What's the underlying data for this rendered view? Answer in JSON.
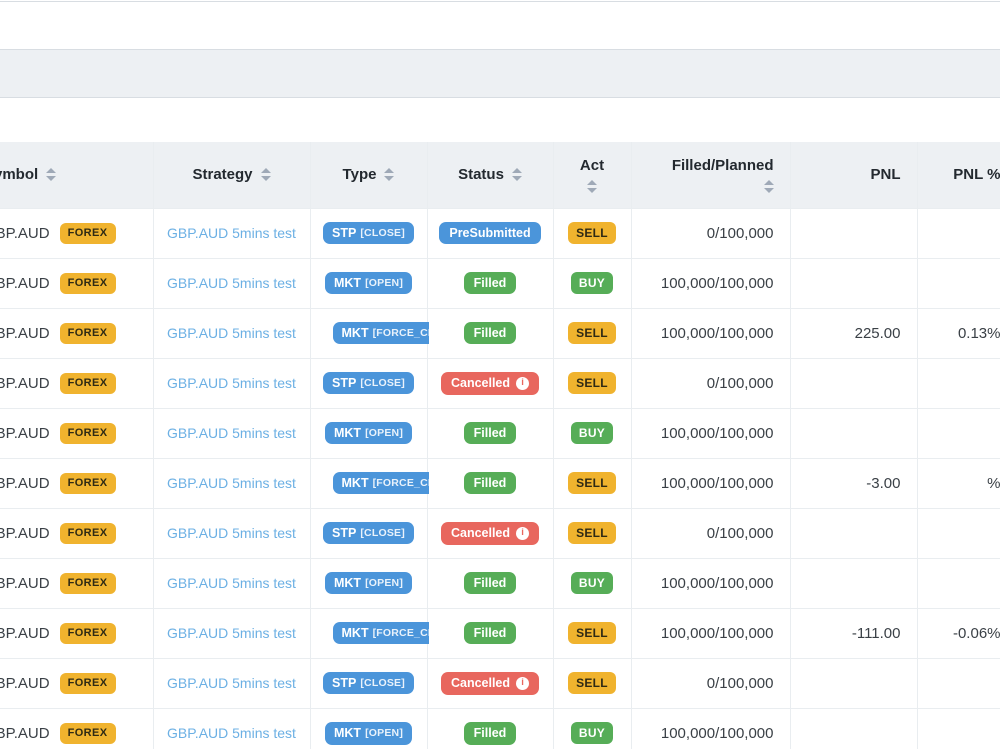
{
  "table": {
    "columns": [
      {
        "id": "symbol",
        "label": "Symbol",
        "sortable": true
      },
      {
        "id": "strategy",
        "label": "Strategy",
        "sortable": true
      },
      {
        "id": "type",
        "label": "Type",
        "sortable": true
      },
      {
        "id": "status",
        "label": "Status",
        "sortable": true
      },
      {
        "id": "act",
        "label": "Act",
        "sortable": true
      },
      {
        "id": "filled_planned",
        "label": "Filled/Planned",
        "sortable": true
      },
      {
        "id": "pnl",
        "label": "PNL",
        "sortable": false
      },
      {
        "id": "pnl_pct",
        "label": "PNL %",
        "sortable": false
      }
    ],
    "rows": [
      {
        "symbol": "GBP.AUD",
        "market_badge": "FOREX",
        "strategy": "GBP.AUD 5mins test",
        "type": {
          "code": "STP",
          "tag": "[CLOSE]",
          "truncated": false
        },
        "status": {
          "label": "PreSubmitted",
          "color": "blue",
          "has_info": false
        },
        "act": "SELL",
        "filled_planned": "0/100,000",
        "pnl": "",
        "pnl_pct": ""
      },
      {
        "symbol": "GBP.AUD",
        "market_badge": "FOREX",
        "strategy": "GBP.AUD 5mins test",
        "type": {
          "code": "MKT",
          "tag": "[OPEN]",
          "truncated": false
        },
        "status": {
          "label": "Filled",
          "color": "green",
          "has_info": false
        },
        "act": "BUY",
        "filled_planned": "100,000/100,000",
        "pnl": "",
        "pnl_pct": ""
      },
      {
        "symbol": "GBP.AUD",
        "market_badge": "FOREX",
        "strategy": "GBP.AUD 5mins test",
        "type": {
          "code": "MKT",
          "tag": "[FORCE_CLOSE]",
          "truncated": true
        },
        "status": {
          "label": "Filled",
          "color": "green",
          "has_info": false
        },
        "act": "SELL",
        "filled_planned": "100,000/100,000",
        "pnl": "225.00",
        "pnl_pct": "0.13%"
      },
      {
        "symbol": "GBP.AUD",
        "market_badge": "FOREX",
        "strategy": "GBP.AUD 5mins test",
        "type": {
          "code": "STP",
          "tag": "[CLOSE]",
          "truncated": false
        },
        "status": {
          "label": "Cancelled",
          "color": "red",
          "has_info": true
        },
        "act": "SELL",
        "filled_planned": "0/100,000",
        "pnl": "",
        "pnl_pct": ""
      },
      {
        "symbol": "GBP.AUD",
        "market_badge": "FOREX",
        "strategy": "GBP.AUD 5mins test",
        "type": {
          "code": "MKT",
          "tag": "[OPEN]",
          "truncated": false
        },
        "status": {
          "label": "Filled",
          "color": "green",
          "has_info": false
        },
        "act": "BUY",
        "filled_planned": "100,000/100,000",
        "pnl": "",
        "pnl_pct": ""
      },
      {
        "symbol": "GBP.AUD",
        "market_badge": "FOREX",
        "strategy": "GBP.AUD 5mins test",
        "type": {
          "code": "MKT",
          "tag": "[FORCE_CLOSE]",
          "truncated": true
        },
        "status": {
          "label": "Filled",
          "color": "green",
          "has_info": false
        },
        "act": "SELL",
        "filled_planned": "100,000/100,000",
        "pnl": "-3.00",
        "pnl_pct": "%"
      },
      {
        "symbol": "GBP.AUD",
        "market_badge": "FOREX",
        "strategy": "GBP.AUD 5mins test",
        "type": {
          "code": "STP",
          "tag": "[CLOSE]",
          "truncated": false
        },
        "status": {
          "label": "Cancelled",
          "color": "red",
          "has_info": true
        },
        "act": "SELL",
        "filled_planned": "0/100,000",
        "pnl": "",
        "pnl_pct": ""
      },
      {
        "symbol": "GBP.AUD",
        "market_badge": "FOREX",
        "strategy": "GBP.AUD 5mins test",
        "type": {
          "code": "MKT",
          "tag": "[OPEN]",
          "truncated": false
        },
        "status": {
          "label": "Filled",
          "color": "green",
          "has_info": false
        },
        "act": "BUY",
        "filled_planned": "100,000/100,000",
        "pnl": "",
        "pnl_pct": ""
      },
      {
        "symbol": "GBP.AUD",
        "market_badge": "FOREX",
        "strategy": "GBP.AUD 5mins test",
        "type": {
          "code": "MKT",
          "tag": "[FORCE_CLOSE]",
          "truncated": true
        },
        "status": {
          "label": "Filled",
          "color": "green",
          "has_info": false
        },
        "act": "SELL",
        "filled_planned": "100,000/100,000",
        "pnl": "-111.00",
        "pnl_pct": "-0.06%"
      },
      {
        "symbol": "GBP.AUD",
        "market_badge": "FOREX",
        "strategy": "GBP.AUD 5mins test",
        "type": {
          "code": "STP",
          "tag": "[CLOSE]",
          "truncated": false
        },
        "status": {
          "label": "Cancelled",
          "color": "red",
          "has_info": true
        },
        "act": "SELL",
        "filled_planned": "0/100,000",
        "pnl": "",
        "pnl_pct": ""
      },
      {
        "symbol": "GBP.AUD",
        "market_badge": "FOREX",
        "strategy": "GBP.AUD 5mins test",
        "type": {
          "code": "MKT",
          "tag": "[OPEN]",
          "truncated": false
        },
        "status": {
          "label": "Filled",
          "color": "green",
          "has_info": false
        },
        "act": "BUY",
        "filled_planned": "100,000/100,000",
        "pnl": "",
        "pnl_pct": ""
      }
    ]
  },
  "icons": {
    "sort": "caret-up-down",
    "cancelled_info": "info-circle"
  },
  "colors": {
    "badge_blue": "#4b95da",
    "badge_green": "#56ad57",
    "badge_red": "#e8675e",
    "badge_amber": "#f0b32e",
    "link_blue": "#6cb0e4",
    "header_bg": "#edf0f3",
    "row_border": "#e9edf0",
    "text_dark": "#3a4046"
  }
}
